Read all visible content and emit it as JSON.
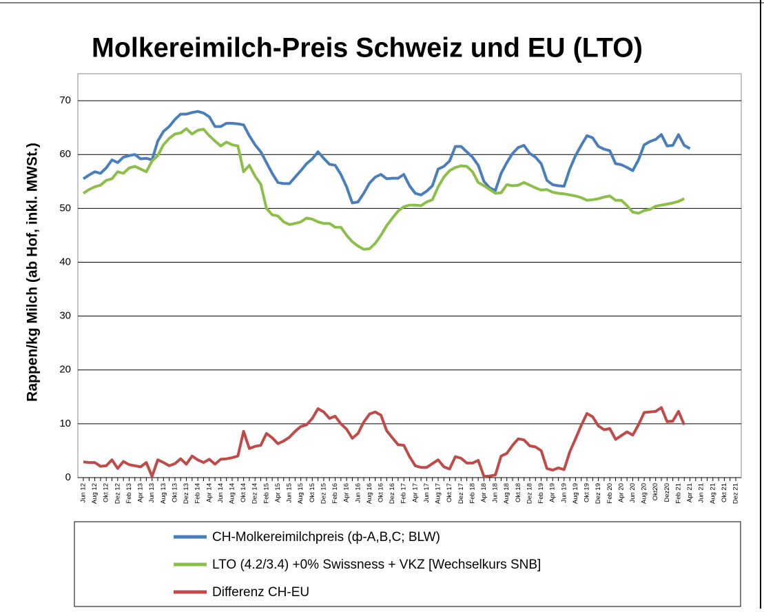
{
  "chart_data": {
    "type": "line",
    "title": "Molkereimilch-Preis Schweiz und EU (LTO)",
    "y_label": "Rappen/kg Milch (ab Hof, inkl. MWSt.)",
    "categories": [
      "Jun 12",
      null,
      "Aug 12",
      null,
      "Okt 12",
      null,
      "Dez 12",
      null,
      "Feb 13",
      null,
      "Apr 13",
      null,
      "Jun 13",
      null,
      "Aug 13",
      null,
      "Okt 13",
      null,
      "Dez 13",
      null,
      "Feb 14",
      null,
      "Apr 14",
      null,
      "Jun 14",
      null,
      "Aug 14",
      null,
      "Okt 14",
      null,
      "Dez 14",
      null,
      "Feb 15",
      null,
      "Apr 15",
      null,
      "Jun 15",
      null,
      "Aug 15",
      null,
      "Okt 15",
      null,
      "Dez 15",
      null,
      "Feb 16",
      null,
      "Apr 16",
      null,
      "Jun 16",
      null,
      "Aug 16",
      null,
      "Okt 16",
      null,
      "Dez 16",
      null,
      "Feb 17",
      null,
      "Apr 17",
      null,
      "Jun 17",
      null,
      "Aug 17",
      null,
      "Okt 17",
      null,
      "Dez 17",
      null,
      "Feb 18",
      null,
      "Apr 18",
      null,
      "Jun 18",
      null,
      "Aug 18",
      null,
      "Okt 18",
      null,
      "Dez 18",
      null,
      "Feb 19",
      null,
      "Apr 19",
      null,
      "Jun 19",
      null,
      "Aug 19",
      null,
      "Okt 19",
      null,
      "Dez 19",
      null,
      "Feb 20",
      null,
      "Apr 20",
      null,
      "Jun 20",
      null,
      "Aug 20",
      null,
      "Okt20",
      null,
      "Dez20",
      null,
      "Feb 21",
      null,
      "Apr 21",
      null,
      "Jun 21",
      null,
      "Aug 21",
      null,
      "Okt 21",
      null,
      "Dez 21"
    ],
    "series": [
      {
        "name": "CH-Molkereimilchpreis (ф-A,B,C; BLW)",
        "color": "#4a7ebb",
        "values": [
          55.5,
          56.2,
          56.8,
          56.5,
          57.5,
          59,
          58.5,
          59.5,
          59.8,
          60,
          59.2,
          59.3,
          59,
          62.5,
          64.3,
          65.2,
          66.5,
          67.5,
          67.5,
          67.8,
          68,
          67.7,
          67,
          65.2,
          65.2,
          65.8,
          65.8,
          65.7,
          65.5,
          63.5,
          61.8,
          60.5,
          58.5,
          56.5,
          54.8,
          54.6,
          54.6,
          55.8,
          57,
          58.3,
          59.2,
          60.5,
          59.3,
          58.2,
          58,
          56.3,
          54,
          51,
          51.2,
          52.8,
          54.7,
          55.8,
          56.3,
          55.5,
          55.6,
          55.6,
          56.3,
          54.2,
          52.8,
          52.5,
          53.2,
          54.2,
          57.3,
          57.8,
          58.8,
          61.5,
          61.5,
          60.5,
          59.5,
          58,
          55,
          53.8,
          53.3,
          56.5,
          58.5,
          60.2,
          61.3,
          61.7,
          60.2,
          59.5,
          58.3,
          55.2,
          54.4,
          54.2,
          54.1,
          57.3,
          59.8,
          61.7,
          63.5,
          63.1,
          61.5,
          61,
          60.7,
          58.3,
          58.1,
          57.6,
          57,
          59,
          61.8,
          62.4,
          62.8,
          63.7,
          61.6,
          61.7,
          63.7,
          61.7,
          61.1,
          null,
          null,
          null,
          null,
          null,
          null,
          null,
          null
        ]
      },
      {
        "name": "LTO (4.2/3.4) +0% Swissness + VKZ [Wechselkurs SNB]",
        "color": "#8cbf4a",
        "values": [
          52.8,
          53.5,
          54,
          54.3,
          55.2,
          55.5,
          56.8,
          56.5,
          57.5,
          57.8,
          57.3,
          56.8,
          58.8,
          59.8,
          61.8,
          63,
          63.8,
          64,
          64.8,
          63.8,
          64.5,
          64.7,
          63.5,
          62.5,
          61.6,
          62.3,
          61.8,
          61.6,
          56.8,
          58,
          56,
          54.5,
          50,
          48.8,
          48.6,
          47.5,
          47,
          47.2,
          47.5,
          48.2,
          48,
          47.5,
          47.2,
          47.2,
          46.5,
          46.5,
          45,
          43.8,
          43,
          42.4,
          42.5,
          43.5,
          45,
          46.8,
          48.2,
          49.5,
          50.3,
          50.6,
          50.6,
          50.5,
          51.2,
          51.6,
          54,
          55.8,
          57,
          57.6,
          57.9,
          57.8,
          56.8,
          54.8,
          54.2,
          53.5,
          52.8,
          52.9,
          54.4,
          54.2,
          54.3,
          54.8,
          54.3,
          53.8,
          53.4,
          53.5,
          53,
          52.8,
          52.7,
          52.5,
          52.3,
          52,
          51.5,
          51.6,
          51.8,
          52.1,
          52.3,
          51.5,
          51.5,
          50.5,
          49.3,
          49.1,
          49.6,
          49.8,
          50.4,
          50.6,
          50.8,
          51,
          51.3,
          51.8,
          null,
          null,
          null,
          null,
          null,
          null,
          null,
          null,
          null
        ]
      },
      {
        "name": "Differenz CH-EU",
        "color": "#be4b48",
        "values": [
          2.9,
          2.8,
          2.8,
          2.1,
          2.2,
          3.3,
          1.7,
          3,
          2.4,
          2.2,
          2,
          2.8,
          0.2,
          3.3,
          2.8,
          2.2,
          2.6,
          3.5,
          2.5,
          4,
          3.3,
          2.8,
          3.4,
          2.5,
          3.4,
          3.5,
          3.7,
          4,
          8.6,
          5.4,
          5.8,
          6,
          8.2,
          7.4,
          6.3,
          6.8,
          7.5,
          8.6,
          9.5,
          9.8,
          11,
          12.8,
          12.2,
          11,
          11.4,
          10,
          9,
          7.3,
          8.2,
          10.3,
          11.8,
          12.2,
          11.6,
          8.7,
          7.4,
          6.1,
          6,
          3.9,
          2.2,
          1.9,
          1.9,
          2.6,
          3.3,
          2,
          1.6,
          3.9,
          3.6,
          2.7,
          2.7,
          3.2,
          0.2,
          0.3,
          0.5,
          4,
          4.5,
          6,
          7.2,
          7,
          5.9,
          5.7,
          5,
          1.7,
          1.4,
          1.8,
          1.5,
          4.8,
          7.2,
          9.7,
          11.9,
          11.3,
          9.6,
          8.9,
          9.1,
          7.1,
          7.8,
          8.5,
          7.9,
          9.8,
          12.1,
          12.2,
          12.3,
          13,
          10.4,
          10.5,
          12.3,
          9.8,
          null,
          null,
          null,
          null,
          null,
          null,
          null,
          null,
          null
        ]
      }
    ],
    "ylim": [
      0,
      75
    ],
    "yticks": [
      0,
      10,
      20,
      30,
      40,
      50,
      60,
      70
    ],
    "grid": true,
    "legend": "bottom"
  }
}
